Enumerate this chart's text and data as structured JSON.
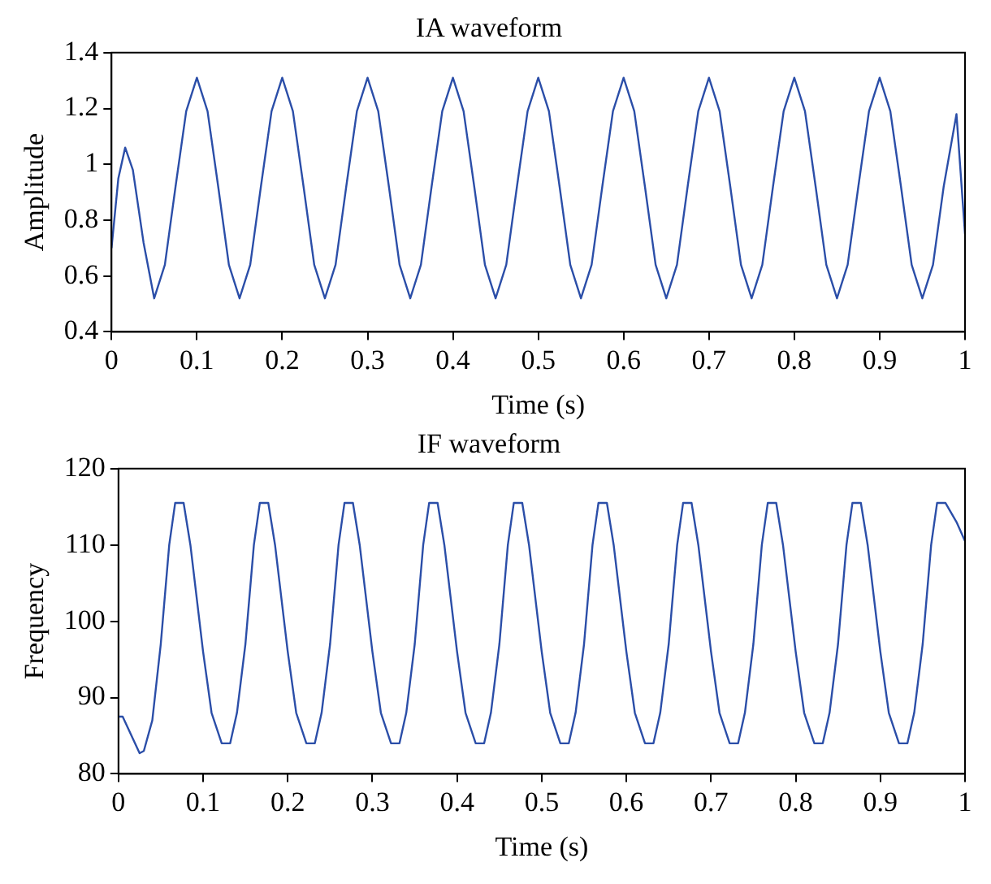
{
  "chart_data": [
    {
      "type": "line",
      "title": "IA waveform",
      "xlabel": "Time (s)",
      "ylabel": "Amplitude",
      "xlim": [
        0,
        1
      ],
      "xticks": [
        0,
        0.1,
        0.2,
        0.3,
        0.4,
        0.5,
        0.6,
        0.7,
        0.8,
        0.9,
        1
      ],
      "ylim": [
        0.4,
        1.4
      ],
      "yticks": [
        0.4,
        0.6,
        0.8,
        1,
        1.2,
        1.4
      ],
      "grid": false,
      "legend": false,
      "marker": "none",
      "line_style": "solid",
      "series": [
        {
          "color": "#2b4ea8",
          "x": [
            0,
            0.008,
            0.016,
            0.025,
            0.0375,
            0.05,
            0.0625,
            0.075,
            0.0875,
            0.1,
            0.1125,
            0.125,
            0.1375,
            0.15,
            0.1625,
            0.175,
            0.1875,
            0.2,
            0.2125,
            0.225,
            0.2375,
            0.25,
            0.2625,
            0.275,
            0.2875,
            0.3,
            0.3125,
            0.325,
            0.3375,
            0.35,
            0.3625,
            0.375,
            0.3875,
            0.4,
            0.4125,
            0.425,
            0.4375,
            0.45,
            0.4625,
            0.475,
            0.4875,
            0.5,
            0.5125,
            0.525,
            0.5375,
            0.55,
            0.5625,
            0.575,
            0.5875,
            0.6,
            0.6125,
            0.625,
            0.6375,
            0.65,
            0.6625,
            0.675,
            0.6875,
            0.7,
            0.7125,
            0.725,
            0.7375,
            0.75,
            0.7625,
            0.775,
            0.7875,
            0.8,
            0.8125,
            0.825,
            0.8375,
            0.85,
            0.8625,
            0.875,
            0.8875,
            0.9,
            0.9125,
            0.925,
            0.9375,
            0.95,
            0.9625,
            0.975,
            0.99,
            1
          ],
          "values": [
            0.7,
            0.95,
            1.06,
            0.98,
            0.72,
            0.52,
            0.64,
            0.92,
            1.19,
            1.31,
            1.19,
            0.92,
            0.64,
            0.52,
            0.64,
            0.92,
            1.19,
            1.31,
            1.19,
            0.92,
            0.64,
            0.52,
            0.64,
            0.92,
            1.19,
            1.31,
            1.19,
            0.92,
            0.64,
            0.52,
            0.64,
            0.92,
            1.19,
            1.31,
            1.19,
            0.92,
            0.64,
            0.52,
            0.64,
            0.92,
            1.19,
            1.31,
            1.19,
            0.92,
            0.64,
            0.52,
            0.64,
            0.92,
            1.19,
            1.31,
            1.19,
            0.92,
            0.64,
            0.52,
            0.64,
            0.92,
            1.19,
            1.31,
            1.19,
            0.92,
            0.64,
            0.52,
            0.64,
            0.92,
            1.19,
            1.31,
            1.19,
            0.92,
            0.64,
            0.52,
            0.64,
            0.92,
            1.19,
            1.31,
            1.19,
            0.92,
            0.64,
            0.52,
            0.64,
            0.92,
            1.18,
            0.75
          ]
        }
      ]
    },
    {
      "type": "line",
      "title": "IF waveform",
      "xlabel": "Time (s)",
      "ylabel": "Frequency",
      "xlim": [
        0,
        1
      ],
      "xticks": [
        0,
        0.1,
        0.2,
        0.3,
        0.4,
        0.5,
        0.6,
        0.7,
        0.8,
        0.9,
        1
      ],
      "ylim": [
        80,
        120
      ],
      "yticks": [
        80,
        90,
        100,
        110,
        120
      ],
      "grid": false,
      "legend": false,
      "marker": "none",
      "line_style": "solid",
      "series": [
        {
          "color": "#2b4ea8",
          "x": [
            0,
            0.005,
            0.025,
            0.03,
            0.04,
            0.05,
            0.06,
            0.067,
            0.077,
            0.085,
            0.1,
            0.11,
            0.122,
            0.132,
            0.14,
            0.15,
            0.16,
            0.167,
            0.177,
            0.185,
            0.2,
            0.21,
            0.222,
            0.232,
            0.24,
            0.25,
            0.26,
            0.267,
            0.277,
            0.285,
            0.3,
            0.31,
            0.322,
            0.332,
            0.34,
            0.35,
            0.36,
            0.367,
            0.377,
            0.385,
            0.4,
            0.41,
            0.422,
            0.432,
            0.44,
            0.45,
            0.46,
            0.467,
            0.477,
            0.485,
            0.5,
            0.51,
            0.522,
            0.532,
            0.54,
            0.55,
            0.56,
            0.567,
            0.577,
            0.585,
            0.6,
            0.61,
            0.622,
            0.632,
            0.64,
            0.65,
            0.66,
            0.667,
            0.677,
            0.685,
            0.7,
            0.71,
            0.722,
            0.732,
            0.74,
            0.75,
            0.76,
            0.767,
            0.777,
            0.785,
            0.8,
            0.81,
            0.822,
            0.832,
            0.84,
            0.85,
            0.86,
            0.867,
            0.877,
            0.885,
            0.9,
            0.91,
            0.922,
            0.932,
            0.94,
            0.95,
            0.96,
            0.967,
            0.977,
            0.99,
            1
          ],
          "values": [
            87.5,
            87.5,
            82.7,
            83,
            87,
            97,
            110,
            115.5,
            115.5,
            110,
            96,
            88,
            84,
            84,
            88,
            97,
            110,
            115.5,
            115.5,
            110,
            96,
            88,
            84,
            84,
            88,
            97,
            110,
            115.5,
            115.5,
            110,
            96,
            88,
            84,
            84,
            88,
            97,
            110,
            115.5,
            115.5,
            110,
            96,
            88,
            84,
            84,
            88,
            97,
            110,
            115.5,
            115.5,
            110,
            96,
            88,
            84,
            84,
            88,
            97,
            110,
            115.5,
            115.5,
            110,
            96,
            88,
            84,
            84,
            88,
            97,
            110,
            115.5,
            115.5,
            110,
            96,
            88,
            84,
            84,
            88,
            97,
            110,
            115.5,
            115.5,
            110,
            96,
            88,
            84,
            84,
            88,
            97,
            110,
            115.5,
            115.5,
            110,
            96,
            88,
            84,
            84,
            88,
            97,
            110,
            115.5,
            115.5,
            113,
            110.5
          ]
        }
      ]
    }
  ]
}
